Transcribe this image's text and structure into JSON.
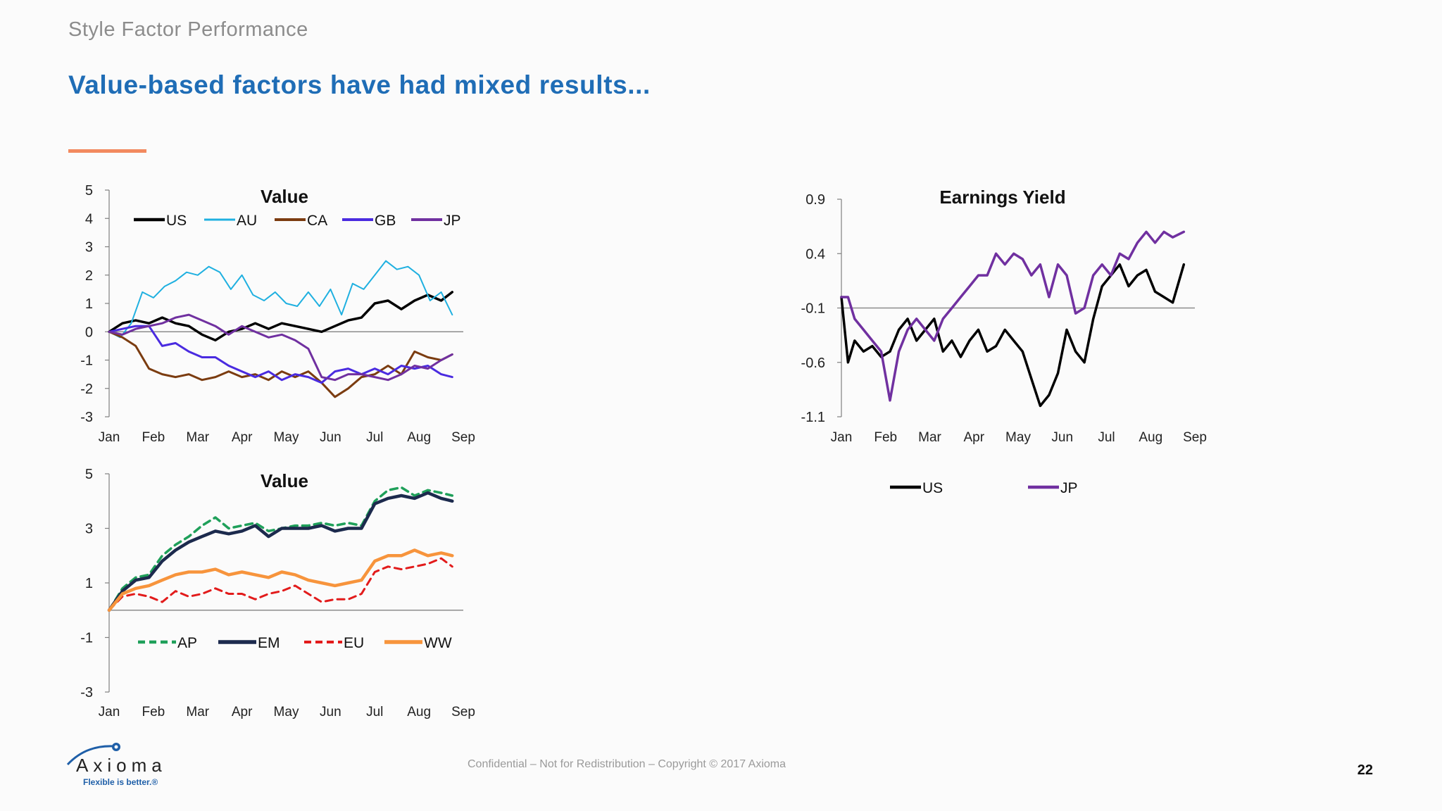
{
  "header": {
    "section_label": "Style Factor Performance",
    "headline": "Value-based factors have had mixed results..."
  },
  "colors": {
    "headline": "#1f6db6",
    "accent_rule": "#f28a5f",
    "US": "#000000",
    "AU": "#1fb0e0",
    "CA": "#7b3c10",
    "GB": "#4a2be0",
    "JP": "#7030a0",
    "AP": "#1fa05a",
    "EM": "#1c2a4d",
    "EU": "#e21b1b",
    "WW": "#f7943c"
  },
  "chart_data": [
    {
      "id": "value_countries",
      "type": "line",
      "title": "Value",
      "xlabel": "",
      "ylabel": "",
      "x_ticks": [
        "Jan",
        "Feb",
        "Mar",
        "Apr",
        "May",
        "Jun",
        "Jul",
        "Aug",
        "Sep"
      ],
      "y_ticks": [
        5,
        4,
        3,
        2,
        1,
        0,
        -1,
        -2,
        -3
      ],
      "ylim": [
        -3,
        5
      ],
      "xlim": [
        0,
        8
      ],
      "zero_line": true,
      "grid": false,
      "legend": "top",
      "series": [
        {
          "name": "US",
          "color": "#000000",
          "style": "solid",
          "width": 3.5,
          "x": [
            0,
            0.3,
            0.6,
            0.9,
            1.2,
            1.5,
            1.8,
            2.1,
            2.4,
            2.7,
            3.0,
            3.3,
            3.6,
            3.9,
            4.2,
            4.5,
            4.8,
            5.1,
            5.4,
            5.7,
            6.0,
            6.3,
            6.6,
            6.9,
            7.2,
            7.5,
            7.75
          ],
          "y": [
            0,
            0.3,
            0.4,
            0.3,
            0.5,
            0.3,
            0.2,
            -0.1,
            -0.3,
            0,
            0.1,
            0.3,
            0.1,
            0.3,
            0.2,
            0.1,
            0,
            0.2,
            0.4,
            0.5,
            1.0,
            1.1,
            0.8,
            1.1,
            1.3,
            1.1,
            1.4
          ]
        },
        {
          "name": "AU",
          "color": "#1fb0e0",
          "style": "solid",
          "width": 2,
          "x": [
            0,
            0.25,
            0.5,
            0.75,
            1.0,
            1.25,
            1.5,
            1.75,
            2.0,
            2.25,
            2.5,
            2.75,
            3.0,
            3.25,
            3.5,
            3.75,
            4.0,
            4.25,
            4.5,
            4.75,
            5.0,
            5.25,
            5.5,
            5.75,
            6.0,
            6.25,
            6.5,
            6.75,
            7.0,
            7.25,
            7.5,
            7.75
          ],
          "y": [
            0,
            -0.2,
            0.3,
            1.4,
            1.2,
            1.6,
            1.8,
            2.1,
            2.0,
            2.3,
            2.1,
            1.5,
            2.0,
            1.3,
            1.1,
            1.4,
            1.0,
            0.9,
            1.4,
            0.9,
            1.5,
            0.6,
            1.7,
            1.5,
            2.0,
            2.5,
            2.2,
            2.3,
            2.0,
            1.1,
            1.4,
            0.6
          ]
        },
        {
          "name": "CA",
          "color": "#7b3c10",
          "style": "solid",
          "width": 3,
          "x": [
            0,
            0.3,
            0.6,
            0.9,
            1.2,
            1.5,
            1.8,
            2.1,
            2.4,
            2.7,
            3.0,
            3.3,
            3.6,
            3.9,
            4.2,
            4.5,
            4.8,
            5.1,
            5.4,
            5.7,
            6.0,
            6.3,
            6.6,
            6.9,
            7.2,
            7.5,
            7.75
          ],
          "y": [
            0,
            -0.2,
            -0.5,
            -1.3,
            -1.5,
            -1.6,
            -1.5,
            -1.7,
            -1.6,
            -1.4,
            -1.6,
            -1.5,
            -1.7,
            -1.4,
            -1.6,
            -1.4,
            -1.8,
            -2.3,
            -2.0,
            -1.6,
            -1.5,
            -1.2,
            -1.5,
            -0.7,
            -0.9,
            -1.0,
            -0.8
          ]
        },
        {
          "name": "GB",
          "color": "#4a2be0",
          "style": "solid",
          "width": 3,
          "x": [
            0,
            0.3,
            0.6,
            0.9,
            1.2,
            1.5,
            1.8,
            2.1,
            2.4,
            2.7,
            3.0,
            3.3,
            3.6,
            3.9,
            4.2,
            4.5,
            4.8,
            5.1,
            5.4,
            5.7,
            6.0,
            6.3,
            6.6,
            6.9,
            7.2,
            7.5,
            7.75
          ],
          "y": [
            0,
            0.1,
            0.2,
            0.2,
            -0.5,
            -0.4,
            -0.7,
            -0.9,
            -0.9,
            -1.2,
            -1.4,
            -1.6,
            -1.4,
            -1.7,
            -1.5,
            -1.6,
            -1.8,
            -1.4,
            -1.3,
            -1.5,
            -1.3,
            -1.5,
            -1.2,
            -1.3,
            -1.2,
            -1.5,
            -1.6
          ]
        },
        {
          "name": "JP",
          "color": "#7030a0",
          "style": "solid",
          "width": 3,
          "x": [
            0,
            0.3,
            0.6,
            0.9,
            1.2,
            1.5,
            1.8,
            2.1,
            2.4,
            2.7,
            3.0,
            3.3,
            3.6,
            3.9,
            4.2,
            4.5,
            4.8,
            5.1,
            5.4,
            5.7,
            6.0,
            6.3,
            6.6,
            6.9,
            7.2,
            7.5,
            7.75
          ],
          "y": [
            0,
            -0.1,
            0.1,
            0.2,
            0.3,
            0.5,
            0.6,
            0.4,
            0.2,
            -0.1,
            0.2,
            0.0,
            -0.2,
            -0.1,
            -0.3,
            -0.6,
            -1.6,
            -1.7,
            -1.5,
            -1.5,
            -1.6,
            -1.7,
            -1.5,
            -1.2,
            -1.3,
            -1.0,
            -0.8
          ]
        }
      ]
    },
    {
      "id": "value_regions",
      "type": "line",
      "title": "Value",
      "xlabel": "",
      "ylabel": "",
      "x_ticks": [
        "Jan",
        "Feb",
        "Mar",
        "Apr",
        "May",
        "Jun",
        "Jul",
        "Aug",
        "Sep"
      ],
      "y_ticks": [
        5,
        3,
        1,
        -1,
        -3
      ],
      "ylim": [
        -3,
        5
      ],
      "xlim": [
        0,
        8
      ],
      "zero_line": true,
      "grid": false,
      "legend": "bottom",
      "series": [
        {
          "name": "AP",
          "color": "#1fa05a",
          "style": "dashed",
          "width": 3.5,
          "x": [
            0,
            0.3,
            0.6,
            0.9,
            1.2,
            1.5,
            1.8,
            2.1,
            2.4,
            2.7,
            3.0,
            3.3,
            3.6,
            3.9,
            4.2,
            4.5,
            4.8,
            5.1,
            5.4,
            5.7,
            6.0,
            6.3,
            6.6,
            6.9,
            7.2,
            7.5,
            7.75
          ],
          "y": [
            0,
            0.8,
            1.2,
            1.3,
            2.0,
            2.4,
            2.7,
            3.1,
            3.4,
            3.0,
            3.1,
            3.2,
            2.9,
            3.0,
            3.1,
            3.1,
            3.2,
            3.1,
            3.2,
            3.1,
            4.0,
            4.4,
            4.5,
            4.2,
            4.4,
            4.3,
            4.2
          ]
        },
        {
          "name": "EM",
          "color": "#1c2a4d",
          "style": "solid",
          "width": 4.5,
          "x": [
            0,
            0.3,
            0.6,
            0.9,
            1.2,
            1.5,
            1.8,
            2.1,
            2.4,
            2.7,
            3.0,
            3.3,
            3.6,
            3.9,
            4.2,
            4.5,
            4.8,
            5.1,
            5.4,
            5.7,
            6.0,
            6.3,
            6.6,
            6.9,
            7.2,
            7.5,
            7.75
          ],
          "y": [
            0,
            0.7,
            1.1,
            1.2,
            1.8,
            2.2,
            2.5,
            2.7,
            2.9,
            2.8,
            2.9,
            3.1,
            2.7,
            3.0,
            3.0,
            3.0,
            3.1,
            2.9,
            3.0,
            3.0,
            3.9,
            4.1,
            4.2,
            4.1,
            4.3,
            4.1,
            4.0
          ]
        },
        {
          "name": "EU",
          "color": "#e21b1b",
          "style": "dashed",
          "width": 3,
          "x": [
            0,
            0.3,
            0.6,
            0.9,
            1.2,
            1.5,
            1.8,
            2.1,
            2.4,
            2.7,
            3.0,
            3.3,
            3.6,
            3.9,
            4.2,
            4.5,
            4.8,
            5.1,
            5.4,
            5.7,
            6.0,
            6.3,
            6.6,
            6.9,
            7.2,
            7.5,
            7.75
          ],
          "y": [
            0,
            0.5,
            0.6,
            0.5,
            0.3,
            0.7,
            0.5,
            0.6,
            0.8,
            0.6,
            0.6,
            0.4,
            0.6,
            0.7,
            0.9,
            0.6,
            0.3,
            0.4,
            0.4,
            0.6,
            1.4,
            1.6,
            1.5,
            1.6,
            1.7,
            1.9,
            1.6
          ]
        },
        {
          "name": "WW",
          "color": "#f7943c",
          "style": "solid",
          "width": 4.5,
          "x": [
            0,
            0.3,
            0.6,
            0.9,
            1.2,
            1.5,
            1.8,
            2.1,
            2.4,
            2.7,
            3.0,
            3.3,
            3.6,
            3.9,
            4.2,
            4.5,
            4.8,
            5.1,
            5.4,
            5.7,
            6.0,
            6.3,
            6.6,
            6.9,
            7.2,
            7.5,
            7.75
          ],
          "y": [
            0,
            0.6,
            0.8,
            0.9,
            1.1,
            1.3,
            1.4,
            1.4,
            1.5,
            1.3,
            1.4,
            1.3,
            1.2,
            1.4,
            1.3,
            1.1,
            1.0,
            0.9,
            1.0,
            1.1,
            1.8,
            2.0,
            2.0,
            2.2,
            2.0,
            2.1,
            2.0
          ]
        }
      ]
    },
    {
      "id": "earnings_yield",
      "type": "line",
      "title": "Earnings Yield",
      "xlabel": "",
      "ylabel": "",
      "x_ticks": [
        "Jan",
        "Feb",
        "Mar",
        "Apr",
        "May",
        "Jun",
        "Jul",
        "Aug",
        "Sep"
      ],
      "y_ticks": [
        0.9,
        0.4,
        -0.1,
        -0.6,
        -1.1
      ],
      "ylim": [
        -1.1,
        0.9
      ],
      "xlim": [
        0,
        8
      ],
      "zero_line": true,
      "grid": false,
      "legend": "bottom",
      "series": [
        {
          "name": "US",
          "color": "#000000",
          "style": "solid",
          "width": 3.5,
          "x": [
            0,
            0.15,
            0.3,
            0.5,
            0.7,
            0.9,
            1.1,
            1.3,
            1.5,
            1.7,
            1.9,
            2.1,
            2.3,
            2.5,
            2.7,
            2.9,
            3.1,
            3.3,
            3.5,
            3.7,
            3.9,
            4.1,
            4.3,
            4.5,
            4.7,
            4.9,
            5.1,
            5.3,
            5.5,
            5.7,
            5.9,
            6.1,
            6.3,
            6.5,
            6.7,
            6.9,
            7.1,
            7.3,
            7.5,
            7.75
          ],
          "y": [
            0,
            -0.6,
            -0.4,
            -0.5,
            -0.45,
            -0.55,
            -0.5,
            -0.3,
            -0.2,
            -0.4,
            -0.3,
            -0.2,
            -0.5,
            -0.4,
            -0.55,
            -0.4,
            -0.3,
            -0.5,
            -0.45,
            -0.3,
            -0.4,
            -0.5,
            -0.75,
            -1.0,
            -0.9,
            -0.7,
            -0.3,
            -0.5,
            -0.6,
            -0.2,
            0.1,
            0.2,
            0.3,
            0.1,
            0.2,
            0.25,
            0.05,
            0.0,
            -0.05,
            0.3
          ]
        },
        {
          "name": "JP",
          "color": "#7030a0",
          "style": "solid",
          "width": 3.5,
          "x": [
            0,
            0.15,
            0.3,
            0.5,
            0.7,
            0.9,
            1.1,
            1.3,
            1.5,
            1.7,
            1.9,
            2.1,
            2.3,
            2.5,
            2.7,
            2.9,
            3.1,
            3.3,
            3.5,
            3.7,
            3.9,
            4.1,
            4.3,
            4.5,
            4.7,
            4.9,
            5.1,
            5.3,
            5.5,
            5.7,
            5.9,
            6.1,
            6.3,
            6.5,
            6.7,
            6.9,
            7.1,
            7.3,
            7.5,
            7.75
          ],
          "y": [
            0,
            0.0,
            -0.2,
            -0.3,
            -0.4,
            -0.5,
            -0.95,
            -0.5,
            -0.3,
            -0.2,
            -0.3,
            -0.4,
            -0.2,
            -0.1,
            0.0,
            0.1,
            0.2,
            0.2,
            0.4,
            0.3,
            0.4,
            0.35,
            0.2,
            0.3,
            0.0,
            0.3,
            0.2,
            -0.15,
            -0.1,
            0.2,
            0.3,
            0.2,
            0.4,
            0.35,
            0.5,
            0.6,
            0.5,
            0.6,
            0.55,
            0.6
          ]
        }
      ]
    }
  ],
  "footer": {
    "confidential": "Confidential – Not for Redistribution – Copyright © 2017 Axioma",
    "page_number": "22"
  },
  "logo": {
    "wordmark": "Axioma",
    "tagline": "Flexible is better.®"
  }
}
